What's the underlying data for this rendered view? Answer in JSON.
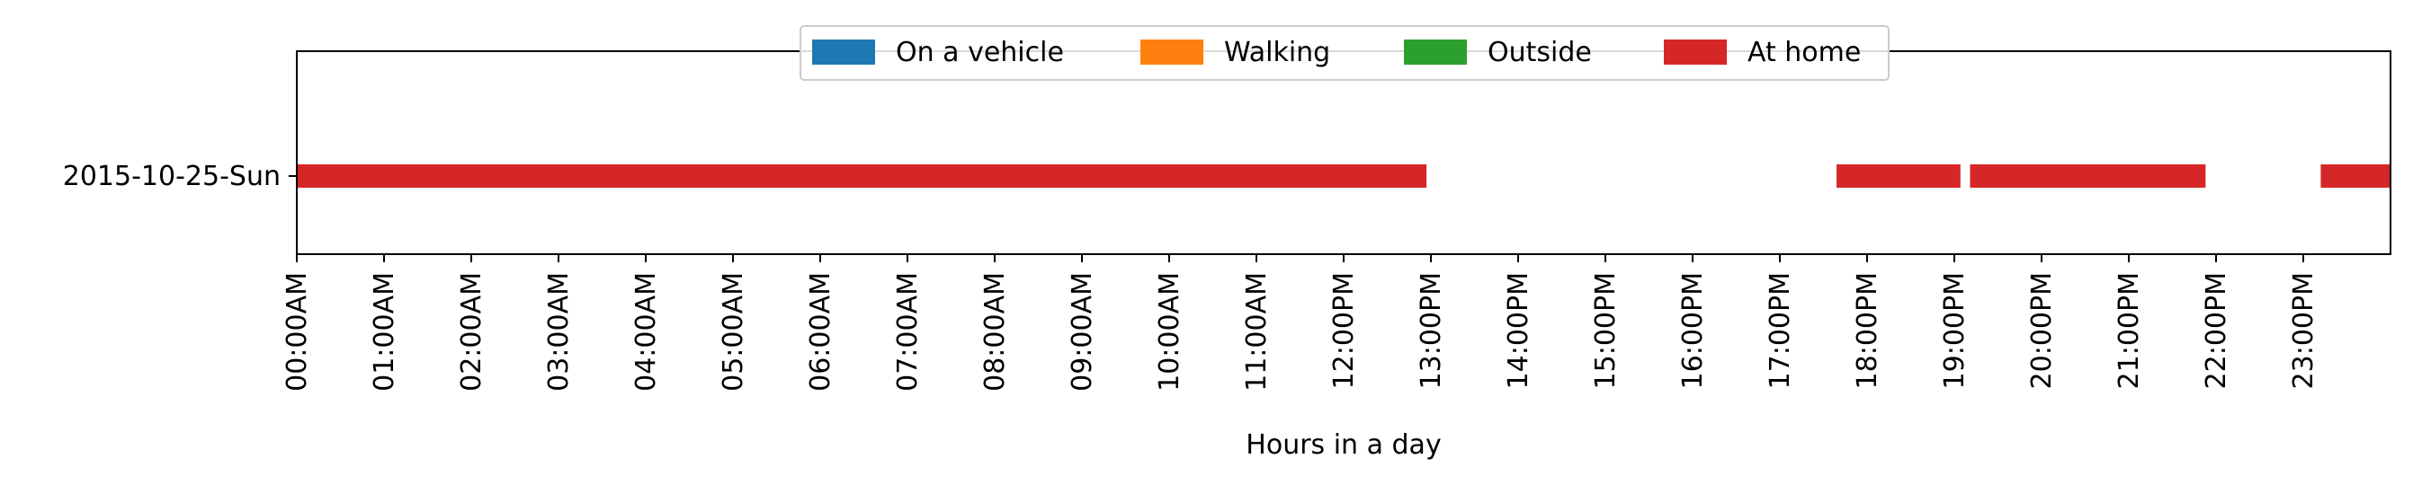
{
  "chart_data": {
    "type": "bar",
    "orientation": "horizontal-timeline",
    "title": "",
    "xlabel": "Hours in a day",
    "ylabel": "",
    "xlim": [
      0,
      24
    ],
    "grid": false,
    "legend_placement": "top-center",
    "categories": [
      "2015-10-25-Sun"
    ],
    "x_ticks": [
      {
        "value": 0,
        "label": "00:00AM"
      },
      {
        "value": 1,
        "label": "01:00AM"
      },
      {
        "value": 2,
        "label": "02:00AM"
      },
      {
        "value": 3,
        "label": "03:00AM"
      },
      {
        "value": 4,
        "label": "04:00AM"
      },
      {
        "value": 5,
        "label": "05:00AM"
      },
      {
        "value": 6,
        "label": "06:00AM"
      },
      {
        "value": 7,
        "label": "07:00AM"
      },
      {
        "value": 8,
        "label": "08:00AM"
      },
      {
        "value": 9,
        "label": "09:00AM"
      },
      {
        "value": 10,
        "label": "10:00AM"
      },
      {
        "value": 11,
        "label": "11:00AM"
      },
      {
        "value": 12,
        "label": "12:00PM"
      },
      {
        "value": 13,
        "label": "13:00PM"
      },
      {
        "value": 14,
        "label": "14:00PM"
      },
      {
        "value": 15,
        "label": "15:00PM"
      },
      {
        "value": 16,
        "label": "16:00PM"
      },
      {
        "value": 17,
        "label": "17:00PM"
      },
      {
        "value": 18,
        "label": "18:00PM"
      },
      {
        "value": 19,
        "label": "19:00PM"
      },
      {
        "value": 20,
        "label": "20:00PM"
      },
      {
        "value": 21,
        "label": "21:00PM"
      },
      {
        "value": 22,
        "label": "22:00PM"
      },
      {
        "value": 23,
        "label": "23:00PM"
      }
    ],
    "series": [
      {
        "name": "On a vehicle",
        "color": "#1f77b4",
        "segments": []
      },
      {
        "name": "Walking",
        "color": "#ff7f0e",
        "segments": []
      },
      {
        "name": "Outside",
        "color": "#2ca02c",
        "segments": []
      },
      {
        "name": "At home",
        "color": "#d62728",
        "segments": [
          {
            "category": "2015-10-25-Sun",
            "start": 0.0,
            "end": 12.95
          },
          {
            "category": "2015-10-25-Sun",
            "start": 17.65,
            "end": 19.07
          },
          {
            "category": "2015-10-25-Sun",
            "start": 19.18,
            "end": 21.88
          },
          {
            "category": "2015-10-25-Sun",
            "start": 23.2,
            "end": 24.0
          }
        ]
      }
    ]
  }
}
